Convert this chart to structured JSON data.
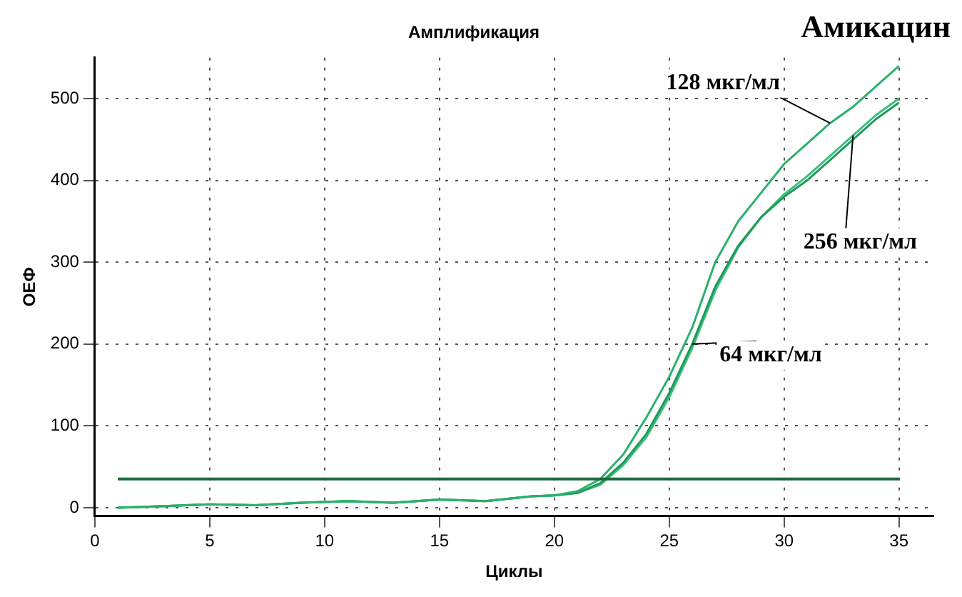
{
  "chart_data": {
    "type": "line",
    "title": "Амплификация",
    "xlabel": "Циклы",
    "ylabel": "ОЕФ",
    "x": [
      1,
      3,
      5,
      7,
      9,
      11,
      13,
      15,
      17,
      19,
      20,
      21,
      22,
      23,
      24,
      25,
      26,
      27,
      28,
      29,
      30,
      31,
      32,
      33,
      34,
      35
    ],
    "series": [
      {
        "name": "128 мкг/мл",
        "color": "#2bb06c",
        "values": [
          0,
          2,
          4,
          3,
          6,
          8,
          6,
          10,
          8,
          14,
          15,
          20,
          35,
          65,
          110,
          160,
          220,
          300,
          350,
          385,
          420,
          445,
          470,
          490,
          515,
          540
        ]
      },
      {
        "name": "64 мкг/мл",
        "color": "#1f9a5a",
        "values": [
          0,
          2,
          4,
          3,
          6,
          8,
          6,
          10,
          8,
          14,
          15,
          18,
          30,
          55,
          90,
          140,
          200,
          270,
          320,
          355,
          380,
          400,
          425,
          450,
          475,
          495
        ]
      },
      {
        "name": "256 мкг/мл",
        "color": "#3cbf7e",
        "values": [
          0,
          2,
          4,
          3,
          6,
          8,
          6,
          10,
          8,
          14,
          15,
          18,
          28,
          52,
          86,
          135,
          195,
          265,
          318,
          355,
          383,
          405,
          430,
          455,
          480,
          500
        ]
      }
    ],
    "annotations": [
      "Амикацин"
    ],
    "ref_lines": [
      {
        "axis": "y",
        "value": 35,
        "color": "#1b6a3c"
      }
    ],
    "xlim": [
      0,
      36.5
    ],
    "xticks": [
      0,
      5,
      10,
      15,
      20,
      25,
      30,
      35
    ],
    "ylim": [
      -10,
      550
    ],
    "yticks": [
      0,
      100,
      200,
      300,
      400,
      500
    ],
    "grid": true,
    "legend": false,
    "marker": "none",
    "line_style": "solid"
  }
}
